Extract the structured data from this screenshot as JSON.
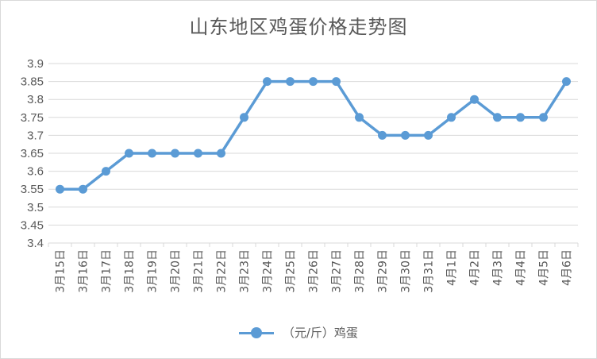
{
  "chart_data": {
    "type": "line",
    "title": "山东地区鸡蛋价格走势图",
    "categories": [
      "3月15日",
      "3月16日",
      "3月17日",
      "3月18日",
      "3月19日",
      "3月20日",
      "3月21日",
      "3月22日",
      "3月23日",
      "3月24日",
      "3月25日",
      "3月26日",
      "3月27日",
      "3月28日",
      "3月29日",
      "3月30日",
      "3月31日",
      "4月1日",
      "4月2日",
      "4月3日",
      "4月4日",
      "4月5日",
      "4月6日"
    ],
    "series": [
      {
        "name": "（元/斤）鸡蛋",
        "values": [
          3.55,
          3.55,
          3.6,
          3.65,
          3.65,
          3.65,
          3.65,
          3.65,
          3.75,
          3.85,
          3.85,
          3.85,
          3.85,
          3.75,
          3.7,
          3.7,
          3.7,
          3.75,
          3.8,
          3.75,
          3.75,
          3.75,
          3.85
        ],
        "color": "#5b9bd5"
      }
    ],
    "ylim": [
      3.4,
      3.9
    ],
    "yticks": [
      "3.9",
      "3.85",
      "3.8",
      "3.75",
      "3.7",
      "3.65",
      "3.6",
      "3.55",
      "3.5",
      "3.45",
      "3.4"
    ],
    "grid": true,
    "legend_position": "bottom"
  }
}
